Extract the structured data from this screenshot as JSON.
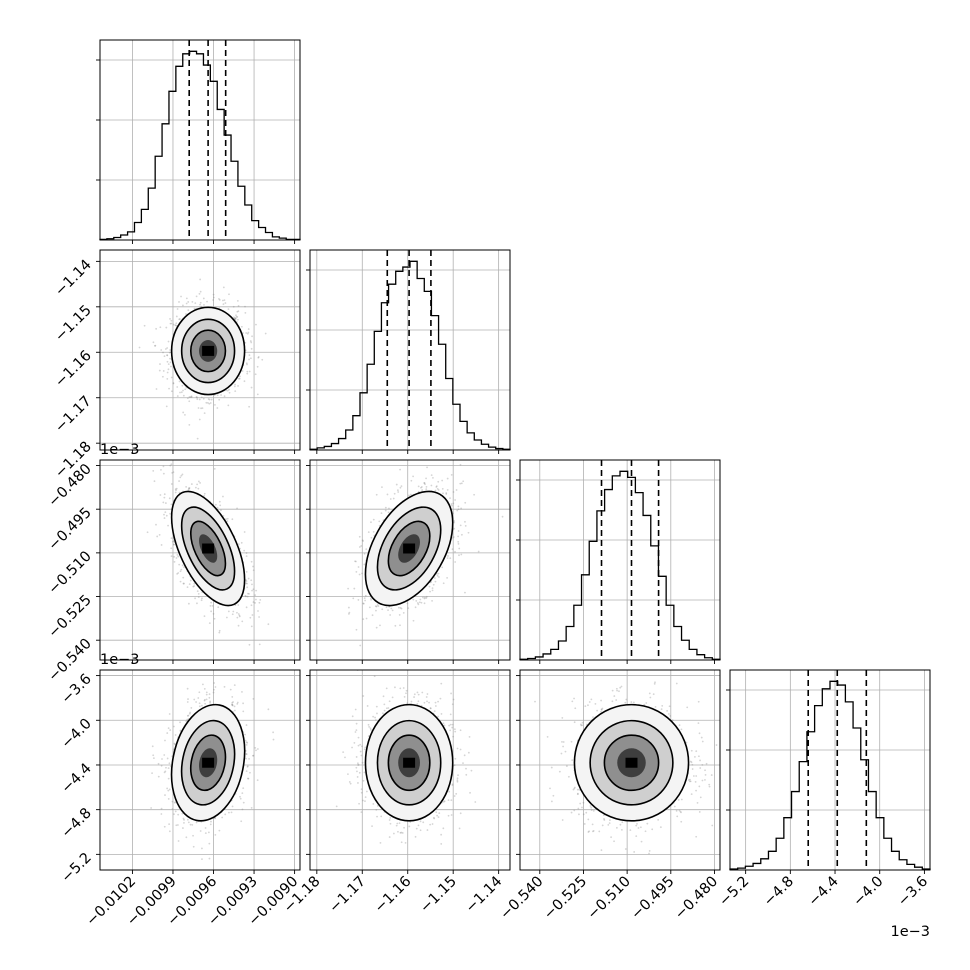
{
  "chart_data": {
    "type": "corner",
    "grid": true,
    "variables": [
      {
        "name": "",
        "range": [
          -0.01044,
          -0.00896
        ],
        "ticks": [
          -0.0102,
          -0.0099,
          -0.0096,
          -0.0093,
          -0.009
        ],
        "tick_labels": [
          "−0.0102",
          "−0.0099",
          "−0.0096",
          "−0.0093",
          "−0.0090"
        ],
        "offset_label": "",
        "quantiles": [
          -0.00978,
          -0.00964,
          -0.00951
        ],
        "hist_edges": [
          -0.01044,
          -0.00896
        ],
        "hist_counts": [
          1,
          2,
          4,
          8,
          13,
          28,
          49,
          83,
          134,
          186,
          238,
          278,
          298,
          302,
          298,
          280,
          254,
          209,
          168,
          126,
          86,
          56,
          31,
          20,
          12,
          5,
          3,
          1,
          1
        ]
      },
      {
        "name": "",
        "range": [
          -1.1815,
          -1.1375
        ],
        "ticks": [
          -1.18,
          -1.17,
          -1.16,
          -1.15,
          -1.14
        ],
        "tick_labels": [
          "−1.18",
          "−1.17",
          "−1.16",
          "−1.15",
          "−1.14"
        ],
        "offset_label": "",
        "quantiles": [
          -1.1645,
          -1.1597,
          -1.1549
        ],
        "hist_edges": [
          -1.1815,
          -1.1375
        ],
        "hist_counts": [
          1,
          3,
          5,
          9,
          16,
          28,
          48,
          80,
          120,
          166,
          206,
          232,
          250,
          256,
          264,
          240,
          222,
          188,
          148,
          100,
          64,
          40,
          24,
          14,
          8,
          4,
          2,
          1
        ]
      },
      {
        "name": "",
        "range": [
          -0.5468,
          -0.4781
        ],
        "ticks": [
          -0.54,
          -0.525,
          -0.51,
          -0.495,
          -0.48
        ],
        "tick_labels": [
          "−0.540",
          "−0.525",
          "−0.510",
          "−0.495",
          "−0.480"
        ],
        "offset_label": "1e−3",
        "quantiles": [
          -0.5188,
          -0.5085,
          -0.4992
        ],
        "hist_edges": [
          -0.5468,
          -0.4781
        ],
        "hist_counts": [
          1,
          2,
          4,
          8,
          14,
          25,
          44,
          72,
          112,
          156,
          196,
          224,
          242,
          248,
          240,
          220,
          190,
          150,
          110,
          72,
          44,
          26,
          14,
          7,
          3,
          1
        ]
      },
      {
        "name": "",
        "range": [
          -5.34,
          -3.55
        ],
        "ticks": [
          -5.2,
          -4.8,
          -4.4,
          -4.0,
          -3.6
        ],
        "tick_labels": [
          "−5.2",
          "−4.8",
          "−4.4",
          "−4.0",
          "−3.6"
        ],
        "offset_label": "1e−3",
        "quantiles": [
          -4.64,
          -4.38,
          -4.12
        ],
        "hist_edges": [
          -5.34,
          -3.55
        ],
        "hist_counts": [
          1,
          2,
          4,
          7,
          12,
          20,
          34,
          56,
          84,
          116,
          148,
          176,
          194,
          202,
          198,
          180,
          152,
          118,
          84,
          56,
          34,
          20,
          11,
          6,
          3,
          1
        ]
      }
    ],
    "correlations": [
      [
        1,
        0.0,
        -0.55,
        0.2
      ],
      [
        0.0,
        1,
        0.45,
        0.0
      ],
      [
        -0.55,
        0.45,
        1,
        0.0
      ],
      [
        0.2,
        0.0,
        0.0,
        1
      ]
    ]
  },
  "colors": {
    "histogram": "#000000",
    "contour": "#000000",
    "samples": "#888888",
    "grid": "#b0b0b0",
    "frame": "#000000"
  }
}
